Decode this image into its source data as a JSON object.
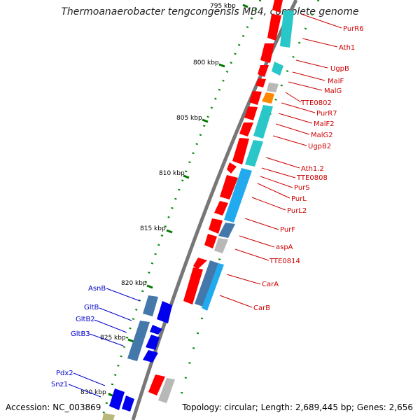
{
  "title": "Thermoanaerobacter tengcongensis MB4, complete genome",
  "footer": {
    "accession": "Accession: NC_003869",
    "summary": "Topology: circular; Length: 2,689,445 bp; Genes: 2,656"
  },
  "scale_labels": [
    {
      "id": "s795",
      "text": "795 kbp"
    },
    {
      "id": "s800",
      "text": "800 kbp"
    },
    {
      "id": "s805",
      "text": "805 kbp"
    },
    {
      "id": "s810",
      "text": "810 kbp"
    },
    {
      "id": "s815",
      "text": "815 kbp"
    },
    {
      "id": "s820",
      "text": "820 kbp"
    },
    {
      "id": "s825",
      "text": "825 kbp"
    },
    {
      "id": "s830",
      "text": "830 kbp"
    }
  ],
  "right_gene_labels": [
    "PurR6",
    "Ath1",
    "UgpB",
    "MalF",
    "MalG",
    "TTE0802",
    "PurR7",
    "MalF2",
    "MalG2",
    "UgpB2",
    "Ath1.2",
    "TTE0808",
    "PurS",
    "PurL",
    "PurL2",
    "PurF",
    "aspA",
    "TTE0814",
    "CarA",
    "CarB"
  ],
  "left_gene_labels": [
    "AsnB",
    "GltB",
    "GltB2",
    "GltB3",
    "Pdx2",
    "Snz1"
  ],
  "colors": {
    "gene_red": "#ff0000",
    "gene_cyan": "#29c7c7",
    "gene_lightblue": "#22aaee",
    "gene_steelblue": "#4477aa",
    "gene_gray": "#b8b8b8",
    "gene_orange": "#ff8800",
    "gene_blue": "#0000ee",
    "gene_olive": "#b8b878",
    "scale_green": "#007700",
    "backbone": "#777777"
  }
}
